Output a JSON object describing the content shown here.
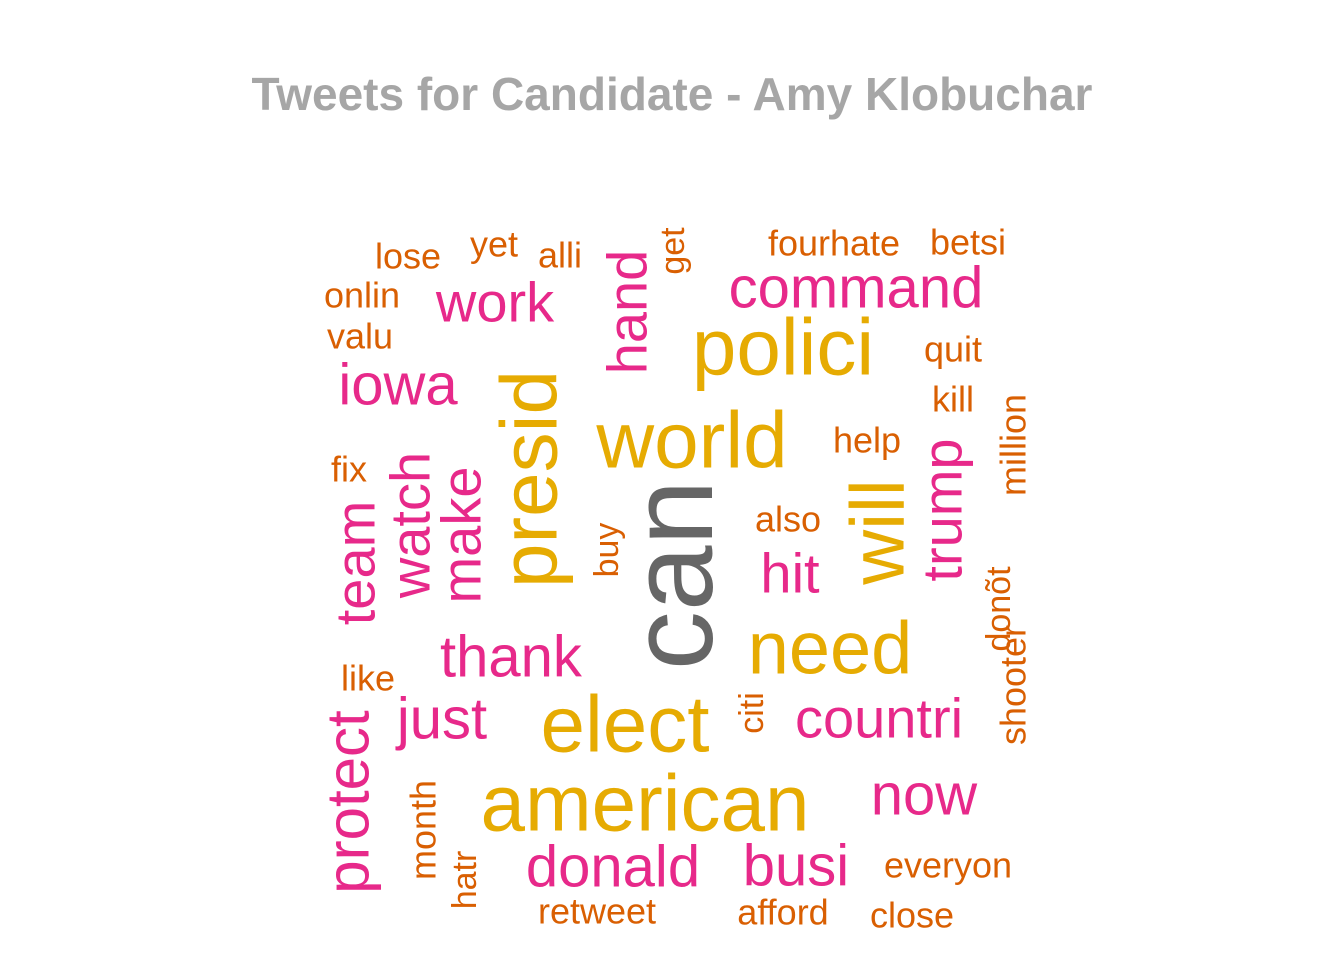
{
  "chart_data": {
    "type": "wordcloud",
    "title": "Tweets for Candidate - Amy Klobuchar",
    "colors": {
      "title": "#a6a6a6",
      "top": "#666666",
      "high": "#e6ab02",
      "mid": "#e7298a",
      "low": "#d95f02"
    },
    "words": [
      {
        "text": "can",
        "freq": 100,
        "tier": "top",
        "vertical": true
      },
      {
        "text": "american",
        "freq": 70,
        "tier": "high",
        "vertical": false
      },
      {
        "text": "elect",
        "freq": 67,
        "tier": "high",
        "vertical": false
      },
      {
        "text": "presid",
        "freq": 63,
        "tier": "high",
        "vertical": true
      },
      {
        "text": "world",
        "freq": 63,
        "tier": "high",
        "vertical": false
      },
      {
        "text": "need",
        "freq": 62,
        "tier": "high",
        "vertical": false
      },
      {
        "text": "will",
        "freq": 60,
        "tier": "high",
        "vertical": true
      },
      {
        "text": "polici",
        "freq": 60,
        "tier": "high",
        "vertical": false
      },
      {
        "text": "make",
        "freq": 47,
        "tier": "mid",
        "vertical": true
      },
      {
        "text": "watch",
        "freq": 47,
        "tier": "mid",
        "vertical": true
      },
      {
        "text": "team",
        "freq": 47,
        "tier": "mid",
        "vertical": true
      },
      {
        "text": "protect",
        "freq": 47,
        "tier": "mid",
        "vertical": true
      },
      {
        "text": "trump",
        "freq": 46,
        "tier": "mid",
        "vertical": true
      },
      {
        "text": "hand",
        "freq": 45,
        "tier": "mid",
        "vertical": true
      },
      {
        "text": "command",
        "freq": 44,
        "tier": "mid",
        "vertical": false
      },
      {
        "text": "donald",
        "freq": 44,
        "tier": "mid",
        "vertical": false
      },
      {
        "text": "busi",
        "freq": 44,
        "tier": "mid",
        "vertical": false
      },
      {
        "text": "thank",
        "freq": 44,
        "tier": "mid",
        "vertical": false
      },
      {
        "text": "just",
        "freq": 44,
        "tier": "mid",
        "vertical": false
      },
      {
        "text": "now",
        "freq": 43,
        "tier": "mid",
        "vertical": false
      },
      {
        "text": "iowa",
        "freq": 42,
        "tier": "mid",
        "vertical": false
      },
      {
        "text": "work",
        "freq": 42,
        "tier": "mid",
        "vertical": false
      },
      {
        "text": "countri",
        "freq": 41,
        "tier": "mid",
        "vertical": false
      },
      {
        "text": "hit",
        "freq": 41,
        "tier": "mid",
        "vertical": false
      },
      {
        "text": "shooter",
        "freq": 25,
        "tier": "low",
        "vertical": true
      },
      {
        "text": "million",
        "freq": 24,
        "tier": "low",
        "vertical": true
      },
      {
        "text": "month",
        "freq": 24,
        "tier": "low",
        "vertical": true
      },
      {
        "text": "donõt",
        "freq": 23,
        "tier": "low",
        "vertical": true
      },
      {
        "text": "get",
        "freq": 23,
        "tier": "low",
        "vertical": true
      },
      {
        "text": "hatr",
        "freq": 23,
        "tier": "low",
        "vertical": true
      },
      {
        "text": "buy",
        "freq": 22,
        "tier": "low",
        "vertical": true
      },
      {
        "text": "citi",
        "freq": 22,
        "tier": "low",
        "vertical": true
      },
      {
        "text": "fourhate",
        "freq": 23,
        "tier": "low",
        "vertical": false
      },
      {
        "text": "betsi",
        "freq": 23,
        "tier": "low",
        "vertical": false
      },
      {
        "text": "everyon",
        "freq": 23,
        "tier": "low",
        "vertical": false
      },
      {
        "text": "retweet",
        "freq": 23,
        "tier": "low",
        "vertical": false
      },
      {
        "text": "afford",
        "freq": 23,
        "tier": "low",
        "vertical": false
      },
      {
        "text": "close",
        "freq": 23,
        "tier": "low",
        "vertical": false
      },
      {
        "text": "lose",
        "freq": 23,
        "tier": "low",
        "vertical": false
      },
      {
        "text": "yet",
        "freq": 23,
        "tier": "low",
        "vertical": false
      },
      {
        "text": "alli",
        "freq": 23,
        "tier": "low",
        "vertical": false
      },
      {
        "text": "onlin",
        "freq": 23,
        "tier": "low",
        "vertical": false
      },
      {
        "text": "valu",
        "freq": 23,
        "tier": "low",
        "vertical": false
      },
      {
        "text": "quit",
        "freq": 23,
        "tier": "low",
        "vertical": false
      },
      {
        "text": "kill",
        "freq": 23,
        "tier": "low",
        "vertical": false
      },
      {
        "text": "help",
        "freq": 23,
        "tier": "low",
        "vertical": false
      },
      {
        "text": "also",
        "freq": 23,
        "tier": "low",
        "vertical": false
      },
      {
        "text": "fix",
        "freq": 23,
        "tier": "low",
        "vertical": false
      },
      {
        "text": "like",
        "freq": 23,
        "tier": "low",
        "vertical": false
      }
    ]
  }
}
